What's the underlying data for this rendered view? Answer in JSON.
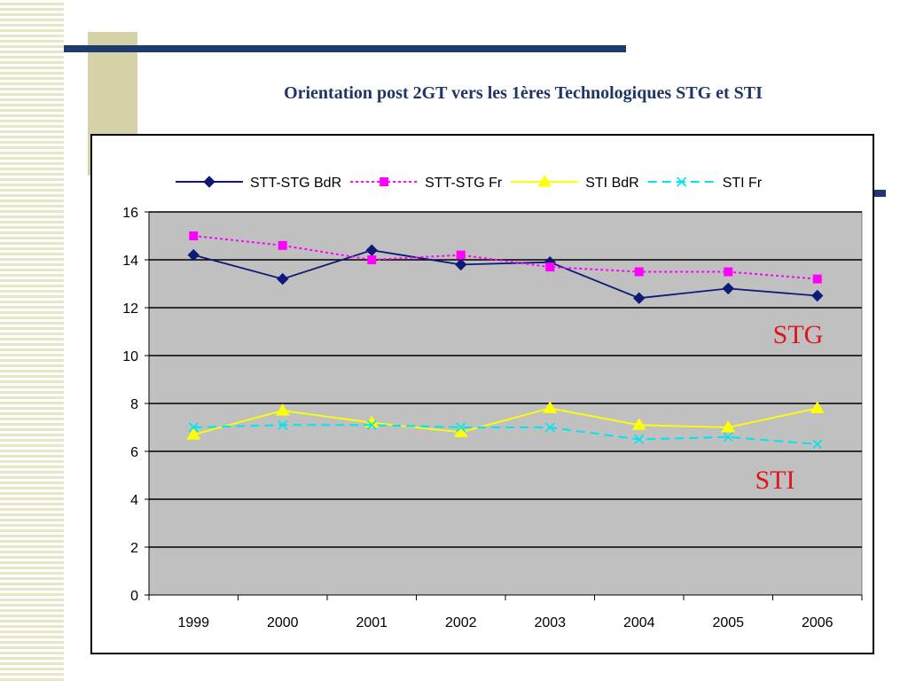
{
  "slide": {
    "title": "Orientation post 2GT vers les 1ères Technologiques STG et STI"
  },
  "colors": {
    "title": "#1f3566",
    "navy_bar": "#1e3a6e",
    "olive_block": "#d4d2a6",
    "plot_background": "#c0c0c0",
    "annotation": "#e0141c"
  },
  "chart_data": {
    "type": "line",
    "title": "",
    "xlabel": "",
    "ylabel": "",
    "categories": [
      "1999",
      "2000",
      "2001",
      "2002",
      "2003",
      "2004",
      "2005",
      "2006"
    ],
    "ylim": [
      0,
      16
    ],
    "yticks": [
      "0",
      "2",
      "4",
      "6",
      "8",
      "10",
      "12",
      "14",
      "16"
    ],
    "grid": "horizontal",
    "legend_position": "top",
    "series": [
      {
        "name": "STT-STG BdR",
        "color": "#0d1a78",
        "dash": "solid",
        "marker": "diamond",
        "values": [
          14.2,
          13.2,
          14.4,
          13.8,
          13.9,
          12.4,
          12.8,
          12.5
        ]
      },
      {
        "name": "STT-STG Fr",
        "color": "#ff00ff",
        "dash": "dotted",
        "marker": "square",
        "values": [
          15.0,
          14.6,
          14.0,
          14.2,
          13.7,
          13.5,
          13.5,
          13.2
        ]
      },
      {
        "name": "STI BdR",
        "color": "#ffff00",
        "dash": "solid",
        "marker": "triangle",
        "values": [
          6.7,
          7.7,
          7.2,
          6.8,
          7.8,
          7.1,
          7.0,
          7.8
        ]
      },
      {
        "name": "STI Fr",
        "color": "#00e5ee",
        "dash": "dashed",
        "marker": "x",
        "values": [
          7.0,
          7.1,
          7.1,
          7.0,
          7.0,
          6.5,
          6.6,
          6.3
        ]
      }
    ],
    "annotations": [
      {
        "text": "STG",
        "near_series": "STT-STG BdR"
      },
      {
        "text": "STI",
        "near_series": "STI Fr"
      }
    ]
  }
}
